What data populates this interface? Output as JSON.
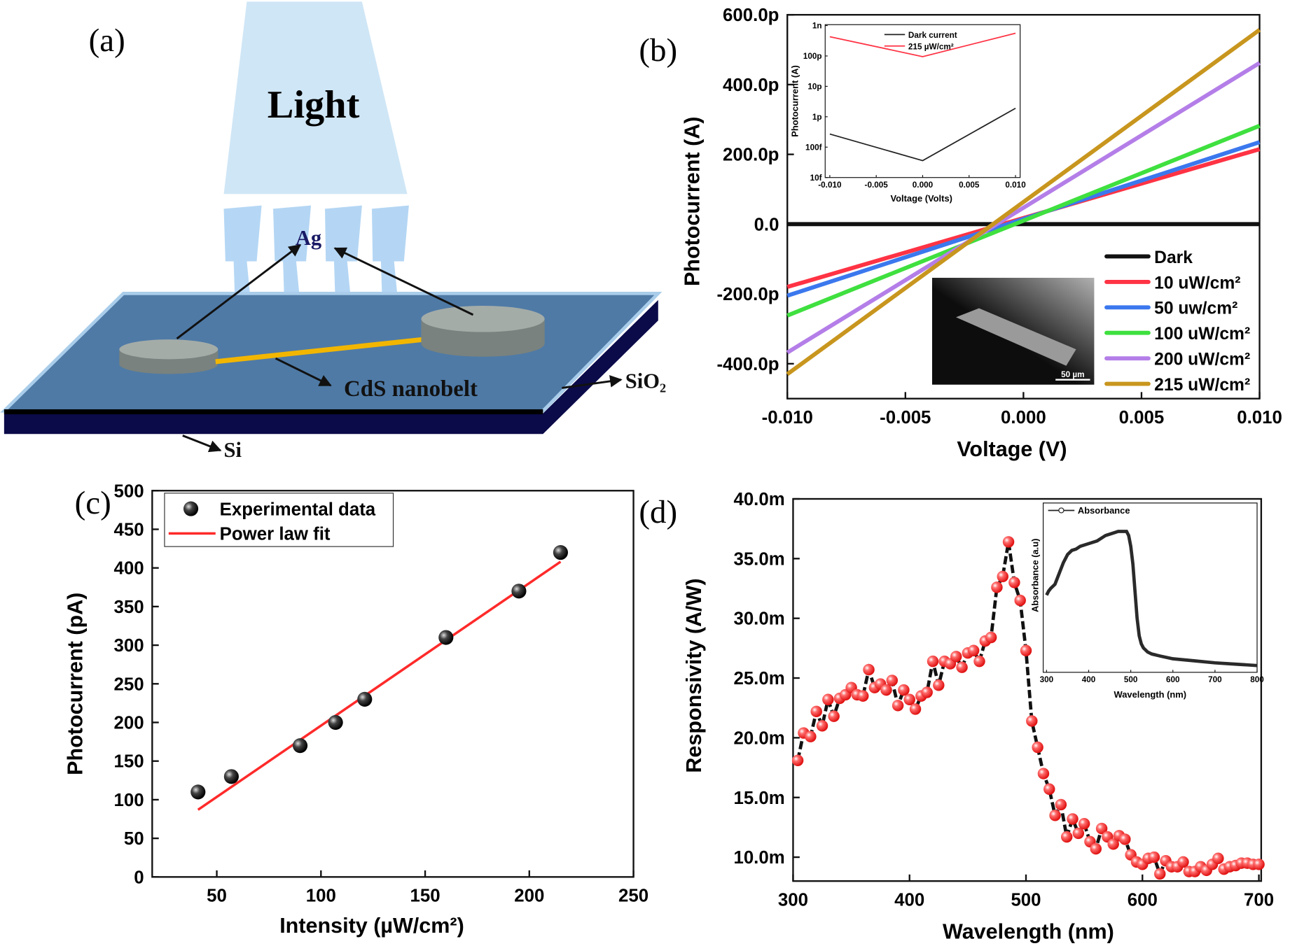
{
  "panel_labels": {
    "a": "(a)",
    "b": "(b)",
    "c": "(c)",
    "d": "(d)"
  },
  "schematic": {
    "light_label": "Light",
    "electrode_label": "Ag",
    "nanobelt_label": "CdS nanobelt",
    "oxide_label": "SiO₂",
    "substrate_label": "Si",
    "colors": {
      "light": "#cfe6f6",
      "oxide": "#4f7aa6",
      "silicon": "#0b0b4a",
      "electrode": "#8c9590",
      "nanobelt": "#f2b600"
    }
  },
  "sem_image": {
    "scale_bar_label": "50 µm"
  },
  "chart_data": [
    {
      "id": "b",
      "type": "line",
      "xlabel": "Voltage (V)",
      "ylabel": "Photocurrent (A)",
      "xlim": [
        -0.01,
        0.01
      ],
      "ylim_pA": [
        -500,
        600
      ],
      "xticks": [
        {
          "v": -0.01,
          "label": "-0.010"
        },
        {
          "v": -0.005,
          "label": "-0.005"
        },
        {
          "v": 0,
          "label": "0.000"
        },
        {
          "v": 0.005,
          "label": "0.005"
        },
        {
          "v": 0.01,
          "label": "0.010"
        }
      ],
      "yticks": [
        {
          "v": 600,
          "label": "600.0p"
        },
        {
          "v": 400,
          "label": "400.0p"
        },
        {
          "v": 200,
          "label": "200.0p"
        },
        {
          "v": 0,
          "label": "0.0"
        },
        {
          "v": -200,
          "label": "-200.0p"
        },
        {
          "v": -400,
          "label": "-400.0p"
        }
      ],
      "legend_position": "bottom-right",
      "x": [
        -0.01,
        0.01
      ],
      "series": [
        {
          "name": "Dark",
          "color": "#111111",
          "values_pA": [
            0,
            0
          ]
        },
        {
          "name": "10 uW/cm²",
          "color": "#ff3344",
          "values_pA": [
            -180,
            215
          ]
        },
        {
          "name": "50 uw/cm²",
          "color": "#3b78ee",
          "values_pA": [
            -205,
            235
          ]
        },
        {
          "name": "100 uW/cm²",
          "color": "#3fe03f",
          "values_pA": [
            -262,
            282
          ]
        },
        {
          "name": "200 uW/cm²",
          "color": "#b47ee8",
          "values_pA": [
            -368,
            462
          ]
        },
        {
          "name": "215 uW/cm²",
          "color": "#c8961e",
          "values_pA": [
            -430,
            557
          ]
        }
      ],
      "inset": {
        "type": "line",
        "xlabel": "Voltage (Volts)",
        "ylabel": "Photocurrent (A)",
        "yscale": "log",
        "xlim": [
          -0.01,
          0.01
        ],
        "ylim": [
          1e-14,
          1e-09
        ],
        "xticks": [
          {
            "v": -0.01,
            "label": "-0.010"
          },
          {
            "v": -0.005,
            "label": "-0.005"
          },
          {
            "v": 0,
            "label": "0.000"
          },
          {
            "v": 0.005,
            "label": "0.005"
          },
          {
            "v": 0.01,
            "label": "0.010"
          }
        ],
        "yticks": [
          {
            "v": 1e-09,
            "label": "1n"
          },
          {
            "v": 1e-10,
            "label": "100p"
          },
          {
            "v": 1e-11,
            "label": "10p"
          },
          {
            "v": 1e-12,
            "label": "1p"
          },
          {
            "v": 1e-13,
            "label": "100f"
          },
          {
            "v": 1e-14,
            "label": "10f"
          }
        ],
        "x": [
          -0.01,
          0,
          0.01
        ],
        "series": [
          {
            "name": "Dark current",
            "color": "#222222",
            "values": [
              2.7e-13,
              3.6e-14,
              1.9e-12
            ]
          },
          {
            "name": "215 µW/cm²",
            "color": "#ff3344",
            "values": [
              4.3e-10,
              9.5e-11,
              5.6e-10
            ]
          }
        ]
      }
    },
    {
      "id": "c",
      "type": "scatter",
      "xlabel": "Intensity (µW/cm²)",
      "ylabel": "Photocurrent (pA)",
      "xlim": [
        19,
        250
      ],
      "ylim": [
        0,
        500
      ],
      "xticks": [
        {
          "v": 50,
          "label": "50"
        },
        {
          "v": 100,
          "label": "100"
        },
        {
          "v": 150,
          "label": "150"
        },
        {
          "v": 200,
          "label": "200"
        },
        {
          "v": 250,
          "label": "250"
        }
      ],
      "yticks": [
        {
          "v": 0,
          "label": "0"
        },
        {
          "v": 50,
          "label": "50"
        },
        {
          "v": 100,
          "label": "100"
        },
        {
          "v": 150,
          "label": "150"
        },
        {
          "v": 200,
          "label": "200"
        },
        {
          "v": 250,
          "label": "250"
        },
        {
          "v": 300,
          "label": "300"
        },
        {
          "v": 350,
          "label": "350"
        },
        {
          "v": 400,
          "label": "400"
        },
        {
          "v": 450,
          "label": "450"
        },
        {
          "v": 500,
          "label": "500"
        }
      ],
      "legend_position": "top-left",
      "points": {
        "name": "Experimental data",
        "color": "#222222",
        "x": [
          41,
          57,
          90,
          107,
          121,
          160,
          195,
          215
        ],
        "y": [
          110,
          130,
          170,
          200,
          230,
          310,
          370,
          420
        ]
      },
      "fit": {
        "name": "Power law fit",
        "color": "#ff2a2a",
        "x": [
          41,
          215
        ],
        "y": [
          87,
          408
        ]
      }
    },
    {
      "id": "d",
      "type": "scatter",
      "xlabel": "Wavelength (nm)",
      "ylabel": "Responsivity (A/W)",
      "xlim": [
        300,
        702
      ],
      "ylim_mAW": [
        8,
        40
      ],
      "xticks": [
        {
          "v": 300,
          "label": "300"
        },
        {
          "v": 400,
          "label": "400"
        },
        {
          "v": 500,
          "label": "500"
        },
        {
          "v": 600,
          "label": "600"
        },
        {
          "v": 700,
          "label": "700"
        }
      ],
      "yticks": [
        {
          "v": 40,
          "label": "40.0m"
        },
        {
          "v": 35,
          "label": "35.0m"
        },
        {
          "v": 30,
          "label": "30.0m"
        },
        {
          "v": 25,
          "label": "25.0m"
        },
        {
          "v": 20,
          "label": "20.0m"
        },
        {
          "v": 15,
          "label": "15.0m"
        },
        {
          "v": 10,
          "label": "10.0m"
        }
      ],
      "marker_color": "#ff2a2a",
      "line_color": "#111111",
      "x": [
        304,
        309,
        315,
        320,
        325,
        330,
        335,
        340,
        345,
        350,
        355,
        360,
        365,
        370,
        375,
        380,
        385,
        390,
        395,
        400,
        405,
        410,
        415,
        420,
        425,
        430,
        435,
        440,
        445,
        450,
        455,
        460,
        465,
        470,
        475,
        480,
        485,
        490,
        495,
        500,
        505,
        510,
        515,
        520,
        525,
        530,
        535,
        540,
        545,
        550,
        555,
        560,
        565,
        570,
        575,
        580,
        585,
        590,
        595,
        600,
        605,
        610,
        615,
        620,
        625,
        630,
        635,
        640,
        645,
        650,
        655,
        660,
        665,
        670,
        675,
        680,
        685,
        690,
        695,
        700
      ],
      "values_mAW": [
        18.1,
        20.4,
        20.1,
        22.2,
        21.0,
        23.2,
        21.8,
        23.3,
        23.6,
        24.2,
        23.6,
        23.5,
        25.7,
        24.2,
        24.5,
        24.0,
        24.8,
        22.7,
        24.0,
        23.2,
        22.4,
        23.5,
        23.8,
        26.4,
        24.4,
        26.4,
        26.2,
        26.8,
        25.9,
        27.1,
        27.3,
        26.4,
        28.1,
        28.4,
        32.6,
        33.5,
        36.4,
        33.0,
        31.5,
        27.3,
        21.4,
        19.2,
        17.0,
        15.7,
        13.5,
        14.4,
        11.7,
        13.2,
        12.0,
        12.8,
        11.3,
        10.7,
        12.4,
        11.7,
        11.1,
        11.8,
        11.5,
        10.2,
        9.6,
        9.4,
        9.9,
        10.0,
        8.6,
        9.7,
        9.2,
        9.2,
        9.6,
        8.8,
        8.8,
        9.2,
        8.9,
        9.4,
        9.9,
        9.0,
        9.2,
        9.3,
        9.5,
        9.5,
        9.4,
        9.4
      ],
      "inset": {
        "type": "line",
        "xlabel": "Wavelength (nm)",
        "ylabel": "Absorbance (a.u)",
        "legend": "Absorbance",
        "xlim": [
          292,
          800
        ],
        "xticks": [
          {
            "v": 300,
            "label": "300"
          },
          {
            "v": 400,
            "label": "400"
          },
          {
            "v": 500,
            "label": "500"
          },
          {
            "v": 600,
            "label": "600"
          },
          {
            "v": 700,
            "label": "700"
          },
          {
            "v": 800,
            "label": "800"
          }
        ],
        "x": [
          300,
          305,
          310,
          320,
          330,
          340,
          350,
          360,
          370,
          380,
          400,
          420,
          440,
          460,
          470,
          480,
          490,
          495,
          500,
          505,
          510,
          515,
          520,
          525,
          530,
          540,
          550,
          570,
          600,
          650,
          700,
          750,
          800
        ],
        "values": [
          0.52,
          0.55,
          0.57,
          0.6,
          0.68,
          0.76,
          0.82,
          0.85,
          0.86,
          0.88,
          0.9,
          0.92,
          0.96,
          0.98,
          0.99,
          0.99,
          0.99,
          0.96,
          0.88,
          0.75,
          0.55,
          0.35,
          0.22,
          0.16,
          0.13,
          0.1,
          0.085,
          0.07,
          0.05,
          0.035,
          0.02,
          0.01,
          0.0
        ]
      }
    }
  ]
}
